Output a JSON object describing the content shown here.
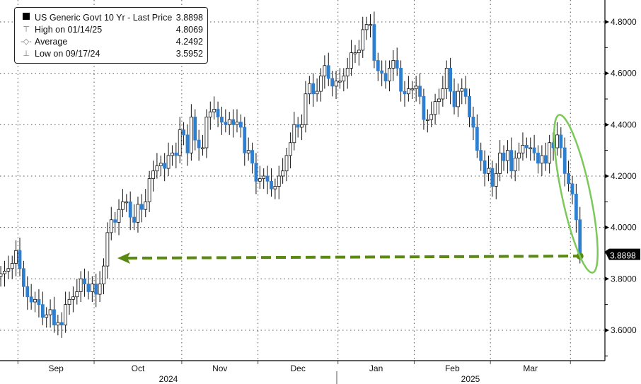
{
  "chart_data": {
    "type": "candlestick",
    "title": "",
    "legend": {
      "placement": "top-left",
      "entries": [
        {
          "label": "US Generic Govt 10 Yr - Last Price",
          "value": "3.8898",
          "icon": "black-square-icon"
        },
        {
          "label": "High on 01/14/25",
          "value": "4.8069",
          "icon": "high-marker-icon"
        },
        {
          "label": "Average",
          "value": "4.2492",
          "icon": "average-marker-icon"
        },
        {
          "label": "Low on 09/17/24",
          "value": "3.5952",
          "icon": "low-marker-icon"
        }
      ]
    },
    "y_axis": {
      "position": "right",
      "range": [
        3.48,
        4.88
      ],
      "ticks": [
        "4.8000",
        "4.6000",
        "4.4000",
        "4.2000",
        "4.0000",
        "3.8000",
        "3.6000"
      ]
    },
    "x_axis": {
      "months": [
        {
          "label": "Sep",
          "start_index": 5
        },
        {
          "label": "Oct",
          "start_index": 25
        },
        {
          "label": "Nov",
          "start_index": 48
        },
        {
          "label": "Dec",
          "start_index": 68
        },
        {
          "label": "Jan",
          "start_index": 89
        },
        {
          "label": "Feb",
          "start_index": 109
        },
        {
          "label": "Mar",
          "start_index": 129
        },
        {
          "label": "",
          "start_index": 150
        }
      ],
      "years": [
        {
          "label": "2024"
        },
        {
          "label": "2025"
        }
      ]
    },
    "grid": true,
    "last_price_label": "3.8898",
    "colors": {
      "down": "#2f7fd0",
      "up": "#ffffff",
      "annotation": "#5a8a12",
      "ellipse": "#7cc85a",
      "label_bg": "#000000"
    },
    "daily_close": [
      3.82,
      3.83,
      3.84,
      3.86,
      3.91,
      3.84,
      3.77,
      3.73,
      3.71,
      3.72,
      3.7,
      3.65,
      3.66,
      3.68,
      3.62,
      3.63,
      3.62,
      3.7,
      3.72,
      3.73,
      3.75,
      3.8,
      3.78,
      3.75,
      3.78,
      3.74,
      3.78,
      3.85,
      3.98,
      4.03,
      4.02,
      4.07,
      4.1,
      4.1,
      4.04,
      4.02,
      4.09,
      4.07,
      4.1,
      4.19,
      4.22,
      4.24,
      4.25,
      4.23,
      4.28,
      4.29,
      4.28,
      4.38,
      4.36,
      4.29,
      4.43,
      4.34,
      4.31,
      4.31,
      4.43,
      4.45,
      4.46,
      4.43,
      4.41,
      4.4,
      4.42,
      4.4,
      4.41,
      4.39,
      4.29,
      4.3,
      4.25,
      4.18,
      4.19,
      4.2,
      4.18,
      4.15,
      4.16,
      4.2,
      4.22,
      4.28,
      4.33,
      4.4,
      4.39,
      4.4,
      4.52,
      4.56,
      4.52,
      4.53,
      4.59,
      4.63,
      4.58,
      4.55,
      4.57,
      4.57,
      4.59,
      4.62,
      4.68,
      4.68,
      4.69,
      4.77,
      4.79,
      4.79,
      4.65,
      4.61,
      4.6,
      4.57,
      4.62,
      4.65,
      4.62,
      4.53,
      4.52,
      4.54,
      4.54,
      4.55,
      4.51,
      4.42,
      4.42,
      4.44,
      4.49,
      4.5,
      4.54,
      4.62,
      4.53,
      4.47,
      4.53,
      4.54,
      4.51,
      4.43,
      4.39,
      4.3,
      4.26,
      4.21,
      4.23,
      4.16,
      4.21,
      4.29,
      4.26,
      4.3,
      4.22,
      4.27,
      4.29,
      4.32,
      4.31,
      4.31,
      4.29,
      4.25,
      4.28,
      4.25,
      4.33,
      4.31,
      4.36,
      4.31,
      4.21,
      4.17,
      4.13,
      4.03,
      3.89
    ]
  }
}
